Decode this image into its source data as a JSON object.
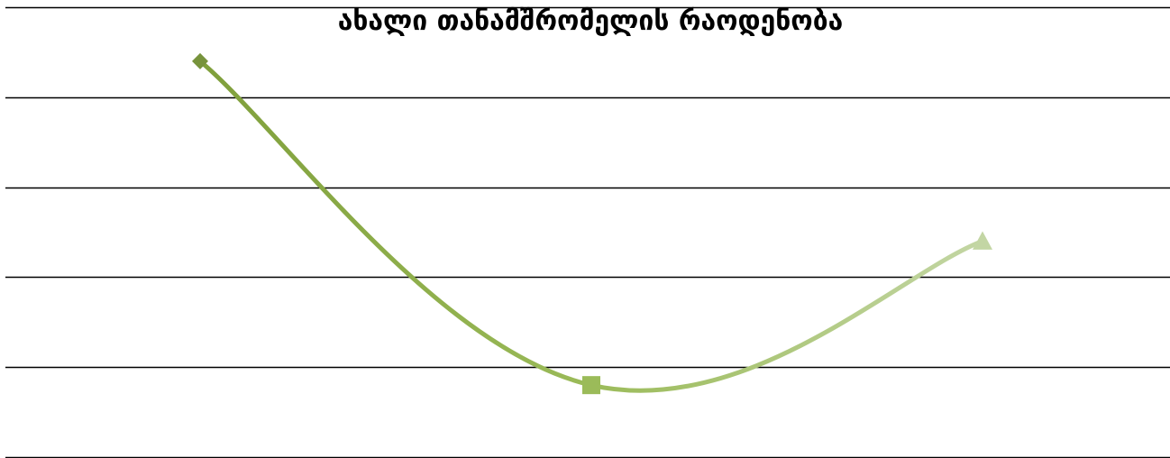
{
  "chart_data": {
    "type": "line",
    "title": "ახალი თანამშრომელის რაოდენობა",
    "categories": [
      "",
      "",
      ""
    ],
    "series": [
      {
        "values": [
          4.4,
          0.8,
          2.4
        ]
      }
    ],
    "ylim": [
      0,
      5
    ],
    "grid": true,
    "legend": "none",
    "xlabel": "",
    "ylabel": "",
    "colors": {
      "line_start": "#7f9f3b",
      "line_mid": "#9bbb59",
      "line_end": "#c3d6a4",
      "marker_1": "#77933c",
      "marker_2": "#9bbb59",
      "marker_3": "#c3d6a4",
      "gridline": "#000000"
    },
    "marker_shapes": [
      "diamond",
      "square",
      "triangle"
    ]
  }
}
